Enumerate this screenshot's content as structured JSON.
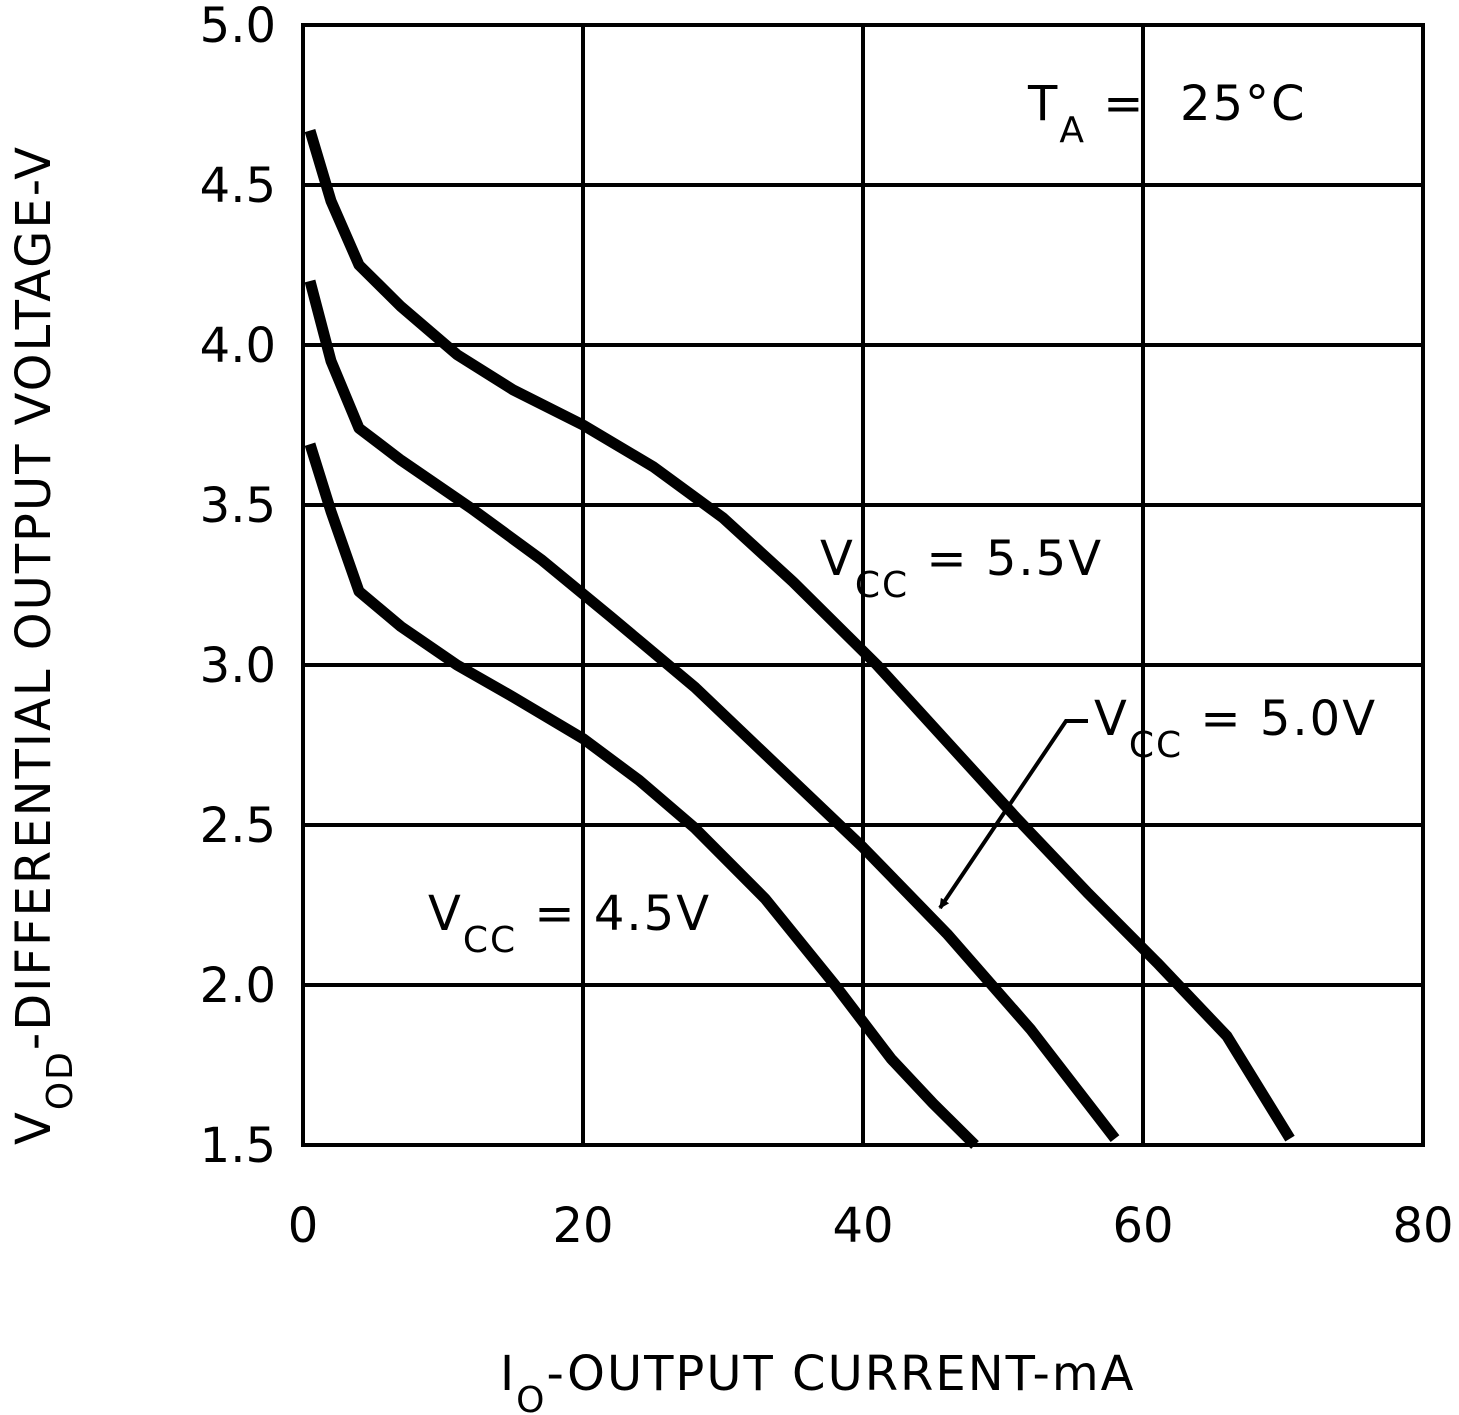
{
  "chart_data": {
    "type": "line",
    "title": "",
    "xlabel": {
      "main": "I",
      "sub": "O",
      "rest": "-OUTPUT CURRENT-mA"
    },
    "ylabel": {
      "main": "V",
      "sub": "OD",
      "rest": "-DIFFERENTIAL OUTPUT VOLTAGE-V"
    },
    "xlim": [
      0,
      80
    ],
    "ylim": [
      1.5,
      5.0
    ],
    "x_ticks": [
      0,
      20,
      40,
      60,
      80
    ],
    "x_tick_labels": [
      "0",
      "20",
      "40",
      "60",
      "80"
    ],
    "y_ticks": [
      1.5,
      2.0,
      2.5,
      3.0,
      3.5,
      4.0,
      4.5,
      5.0
    ],
    "y_tick_labels": [
      "1.5",
      "2.0",
      "2.5",
      "3.0",
      "3.5",
      "4.0",
      "4.5",
      "5.0"
    ],
    "grid": true,
    "annotation": {
      "main": "T",
      "sub": "A",
      "rest": " =  25°C"
    },
    "series": [
      {
        "name": "VCC = 5.5V",
        "label": {
          "main": "V",
          "sub": "CC",
          "rest": " = 5.5V"
        },
        "x": [
          0.5,
          2,
          4,
          7,
          11,
          15,
          20,
          25,
          30,
          35,
          41,
          46,
          51,
          56,
          61,
          66,
          70.5
        ],
        "y": [
          4.67,
          4.45,
          4.25,
          4.12,
          3.97,
          3.86,
          3.75,
          3.62,
          3.46,
          3.26,
          3.0,
          2.76,
          2.52,
          2.29,
          2.07,
          1.84,
          1.52
        ]
      },
      {
        "name": "VCC = 5.0V",
        "label": {
          "main": "V",
          "sub": "CC",
          "rest": " = 5.0V"
        },
        "x": [
          0.5,
          2,
          4,
          7,
          12,
          17,
          22,
          28,
          34,
          40,
          46,
          52,
          58
        ],
        "y": [
          4.2,
          3.95,
          3.74,
          3.64,
          3.49,
          3.33,
          3.15,
          2.93,
          2.68,
          2.43,
          2.16,
          1.86,
          1.52
        ]
      },
      {
        "name": "VCC = 4.5V",
        "label": {
          "main": "V",
          "sub": "CC",
          "rest": " = 4.5V"
        },
        "x": [
          0.5,
          2,
          4,
          7,
          11,
          15,
          20,
          24,
          28,
          33,
          38,
          42,
          45,
          48
        ],
        "y": [
          3.69,
          3.48,
          3.23,
          3.12,
          3.0,
          2.9,
          2.77,
          2.64,
          2.49,
          2.27,
          2.0,
          1.77,
          1.63,
          1.5
        ]
      }
    ],
    "arrow": {
      "points_to": "VCC = 5.0V",
      "from": "label"
    },
    "colors": {
      "line": "#000000",
      "grid": "#000000",
      "background": "#ffffff"
    }
  }
}
